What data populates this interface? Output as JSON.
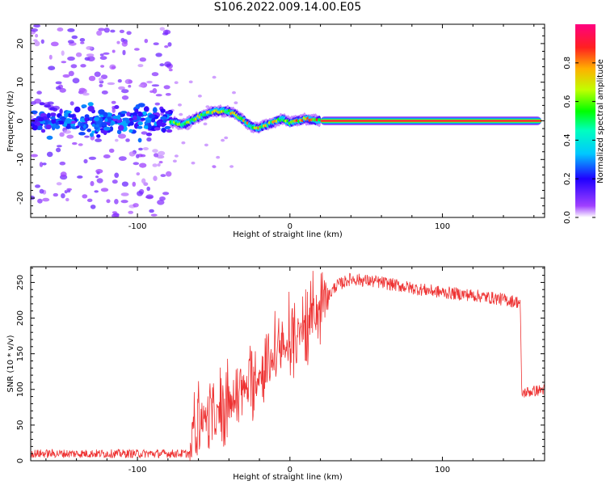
{
  "page": {
    "title": "S106.2022.009.14.00.E05"
  },
  "chart_data": [
    {
      "type": "heatmap",
      "xlabel": "Height of straight line (km)",
      "ylabel": "Frequency (Hz)",
      "xlim": [
        -170,
        167
      ],
      "ylim": [
        -25,
        25
      ],
      "x_ticks": [
        -100,
        0,
        100
      ],
      "y_ticks": [
        -20,
        -10,
        0,
        10,
        20
      ],
      "colorbar": {
        "label": "Normalized spectral amplitude",
        "range": [
          0,
          1
        ],
        "ticks": [
          0.0,
          0.2,
          0.4,
          0.6,
          0.8
        ],
        "colormap": [
          "#ffffff",
          "#8000ff",
          "#0000ff",
          "#00ffff",
          "#00ff00",
          "#ffff00",
          "#ff0000",
          "#ff0080"
        ]
      },
      "ridge": [
        {
          "x": -170,
          "f": 0.0
        },
        {
          "x": -120,
          "f": 0.5
        },
        {
          "x": -80,
          "f": 0.0
        },
        {
          "x": -70,
          "f": -1.0
        },
        {
          "x": -60,
          "f": 1.0
        },
        {
          "x": -50,
          "f": 2.5
        },
        {
          "x": -40,
          "f": 2.5
        },
        {
          "x": -33,
          "f": 1.0
        },
        {
          "x": -27,
          "f": -1.0
        },
        {
          "x": -22,
          "f": -2.0
        },
        {
          "x": -15,
          "f": -1.0
        },
        {
          "x": -5,
          "f": 0.5
        },
        {
          "x": 0,
          "f": -0.5
        },
        {
          "x": 10,
          "f": 0.5
        },
        {
          "x": 20,
          "f": 0.0
        },
        {
          "x": 167,
          "f": 0.0
        }
      ],
      "noise_region_x": [
        -170,
        -78
      ],
      "steady_region_x": [
        20,
        165
      ]
    },
    {
      "type": "line",
      "xlabel": "Height of straight line (km)",
      "ylabel": "SNR (10 * v/v)",
      "xlim": [
        -170,
        167
      ],
      "ylim": [
        0,
        272
      ],
      "x_ticks": [
        -100,
        0,
        100
      ],
      "y_ticks": [
        0,
        50,
        100,
        150,
        200,
        250
      ],
      "color": "#ee3333",
      "trend": [
        {
          "x": -170,
          "y": 10
        },
        {
          "x": -65,
          "y": 10
        },
        {
          "x": -63,
          "y": 60
        },
        {
          "x": -50,
          "y": 60
        },
        {
          "x": -40,
          "y": 75
        },
        {
          "x": -30,
          "y": 100
        },
        {
          "x": -20,
          "y": 120
        },
        {
          "x": -10,
          "y": 145
        },
        {
          "x": 0,
          "y": 160
        },
        {
          "x": 10,
          "y": 185
        },
        {
          "x": 20,
          "y": 215
        },
        {
          "x": 30,
          "y": 245
        },
        {
          "x": 40,
          "y": 255
        },
        {
          "x": 60,
          "y": 250
        },
        {
          "x": 80,
          "y": 242
        },
        {
          "x": 100,
          "y": 236
        },
        {
          "x": 120,
          "y": 232
        },
        {
          "x": 140,
          "y": 226
        },
        {
          "x": 151,
          "y": 222
        },
        {
          "x": 152,
          "y": 95
        },
        {
          "x": 167,
          "y": 100
        }
      ]
    }
  ]
}
